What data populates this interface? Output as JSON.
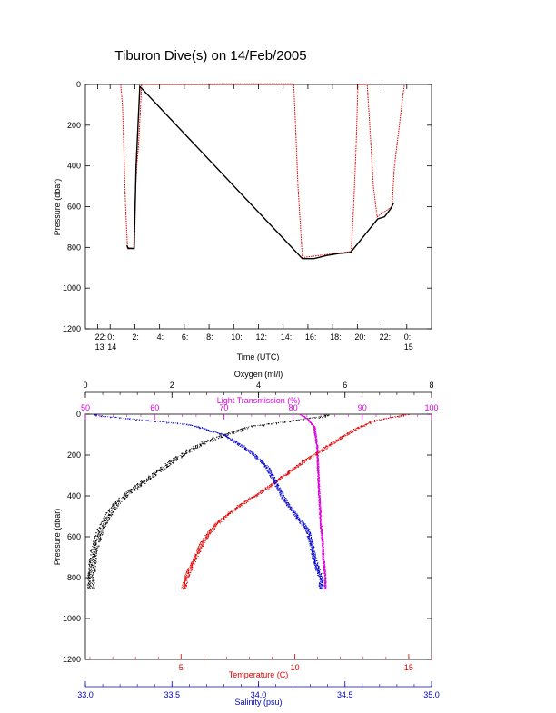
{
  "title": "Tiburon Dive(s) on 14/Feb/2005",
  "chart_data": [
    {
      "type": "line",
      "xlabel": "Time (UTC)",
      "ylabel": "Pressure (dbar)",
      "xlim": [
        -2,
        26
      ],
      "ylim": [
        1200,
        0
      ],
      "x_ticks": [
        {
          "v": -1,
          "top": "22:",
          "bottom": "13"
        },
        {
          "v": 0,
          "top": "0:",
          "bottom": "14"
        },
        {
          "v": 2,
          "top": "2:",
          "bottom": ""
        },
        {
          "v": 4,
          "top": "4:",
          "bottom": ""
        },
        {
          "v": 6,
          "top": "6:",
          "bottom": ""
        },
        {
          "v": 8,
          "top": "8:",
          "bottom": ""
        },
        {
          "v": 10,
          "top": "10:",
          "bottom": ""
        },
        {
          "v": 12,
          "top": "12:",
          "bottom": ""
        },
        {
          "v": 14,
          "top": "14:",
          "bottom": ""
        },
        {
          "v": 16,
          "top": "16:",
          "bottom": ""
        },
        {
          "v": 18,
          "top": "18:",
          "bottom": ""
        },
        {
          "v": 20,
          "top": "20:",
          "bottom": ""
        },
        {
          "v": 22,
          "top": "22:",
          "bottom": ""
        },
        {
          "v": 24,
          "top": "0:",
          "bottom": "15"
        }
      ],
      "y_ticks": [
        0,
        200,
        400,
        600,
        800,
        1000,
        1200
      ],
      "colors": {
        "descent": "#e00000",
        "bottom": "#000000"
      },
      "series": [
        {
          "color": "#e00000",
          "points": [
            [
              0.85,
              0
            ],
            [
              1.0,
              100
            ],
            [
              1.1,
              300
            ],
            [
              1.25,
              600
            ],
            [
              1.4,
              800
            ],
            [
              1.9,
              805
            ],
            [
              2.0,
              600
            ],
            [
              2.15,
              400
            ],
            [
              2.3,
              300
            ],
            [
              2.55,
              0
            ],
            [
              2.7,
              0
            ],
            [
              9,
              -5
            ],
            [
              14.8,
              -10
            ],
            [
              14.85,
              0
            ],
            [
              15.0,
              200
            ],
            [
              15.2,
              500
            ],
            [
              15.4,
              700
            ],
            [
              15.55,
              850
            ],
            [
              19.5,
              820
            ],
            [
              19.7,
              600
            ],
            [
              19.9,
              300
            ],
            [
              20.05,
              0
            ],
            [
              20.8,
              0
            ],
            [
              21.0,
              200
            ],
            [
              21.3,
              500
            ],
            [
              21.6,
              650
            ],
            [
              22.8,
              600
            ],
            [
              23.0,
              400
            ],
            [
              23.6,
              100
            ],
            [
              23.8,
              0
            ]
          ]
        },
        {
          "color": "#000000",
          "points": [
            [
              1.35,
              790
            ],
            [
              1.45,
              805
            ],
            [
              1.95,
              805
            ],
            [
              2.1,
              400
            ],
            [
              2.4,
              10
            ],
            [
              15.55,
              855
            ],
            [
              16.5,
              855
            ],
            [
              17.5,
              840
            ],
            [
              18.5,
              830
            ],
            [
              19.45,
              825
            ],
            [
              21.65,
              660
            ],
            [
              22.2,
              650
            ],
            [
              22.7,
              610
            ],
            [
              22.95,
              580
            ]
          ]
        }
      ]
    },
    {
      "type": "scatter",
      "ylabel": "Pressure (dbar)",
      "ylim": [
        1200,
        0
      ],
      "y_ticks": [
        0,
        200,
        400,
        600,
        800,
        1000,
        1200
      ],
      "axes": [
        {
          "key": "oxygen",
          "label": "Oxygen (ml/l)",
          "color": "#000000",
          "position": "top",
          "range": [
            0,
            8
          ],
          "ticks": [
            0,
            2,
            4,
            6,
            8
          ]
        },
        {
          "key": "light",
          "label": "Light Transmission (%)",
          "color": "#dd00dd",
          "position": "top",
          "range": [
            50,
            100
          ],
          "ticks": [
            50,
            60,
            70,
            80,
            90,
            100
          ]
        },
        {
          "key": "temp",
          "label": "Temperature (C)",
          "color": "#e00000",
          "position": "bottom",
          "range": [
            0.8,
            16.0
          ],
          "ticks": [
            5,
            10,
            15
          ]
        },
        {
          "key": "sal",
          "label": "Salinity (psu)",
          "color": "#0000cc",
          "position": "bottom",
          "range": [
            33.0,
            35.0
          ],
          "ticks": [
            33.0,
            33.5,
            34.0,
            34.5,
            35.0
          ]
        }
      ],
      "series": [
        {
          "axis": "oxygen",
          "points": [
            [
              5.6,
              0
            ],
            [
              5.5,
              10
            ],
            [
              5.0,
              25
            ],
            [
              4.5,
              40
            ],
            [
              3.8,
              60
            ],
            [
              3.2,
              100
            ],
            [
              2.6,
              150
            ],
            [
              2.2,
              200
            ],
            [
              1.8,
              260
            ],
            [
              1.4,
              320
            ],
            [
              1.0,
              380
            ],
            [
              0.7,
              440
            ],
            [
              0.5,
              500
            ],
            [
              0.35,
              560
            ],
            [
              0.25,
              620
            ],
            [
              0.18,
              680
            ],
            [
              0.15,
              740
            ],
            [
              0.12,
              800
            ],
            [
              0.12,
              855
            ]
          ]
        },
        {
          "axis": "light",
          "points": [
            [
              81,
              0
            ],
            [
              82,
              20
            ],
            [
              83,
              60
            ],
            [
              83.4,
              150
            ],
            [
              83.6,
              300
            ],
            [
              83.8,
              450
            ],
            [
              84,
              560
            ],
            [
              84.2,
              620
            ],
            [
              84.3,
              700
            ],
            [
              84.5,
              760
            ],
            [
              84.6,
              800
            ],
            [
              84.6,
              855
            ]
          ]
        },
        {
          "axis": "temp",
          "points": [
            [
              14.9,
              0
            ],
            [
              14.5,
              10
            ],
            [
              13.5,
              30
            ],
            [
              12.5,
              80
            ],
            [
              11.5,
              150
            ],
            [
              10.5,
              220
            ],
            [
              9.5,
              300
            ],
            [
              8.5,
              380
            ],
            [
              7.5,
              450
            ],
            [
              6.7,
              520
            ],
            [
              6.2,
              580
            ],
            [
              5.9,
              630
            ],
            [
              5.7,
              680
            ],
            [
              5.4,
              750
            ],
            [
              5.2,
              800
            ],
            [
              5.1,
              855
            ]
          ]
        },
        {
          "axis": "sal",
          "points": [
            [
              33.05,
              0
            ],
            [
              33.1,
              10
            ],
            [
              33.3,
              25
            ],
            [
              33.6,
              50
            ],
            [
              33.8,
              100
            ],
            [
              33.95,
              180
            ],
            [
              34.05,
              260
            ],
            [
              34.1,
              340
            ],
            [
              34.15,
              420
            ],
            [
              34.22,
              500
            ],
            [
              34.28,
              560
            ],
            [
              34.3,
              620
            ],
            [
              34.32,
              700
            ],
            [
              34.34,
              760
            ],
            [
              34.36,
              800
            ],
            [
              34.36,
              855
            ]
          ]
        }
      ]
    }
  ]
}
